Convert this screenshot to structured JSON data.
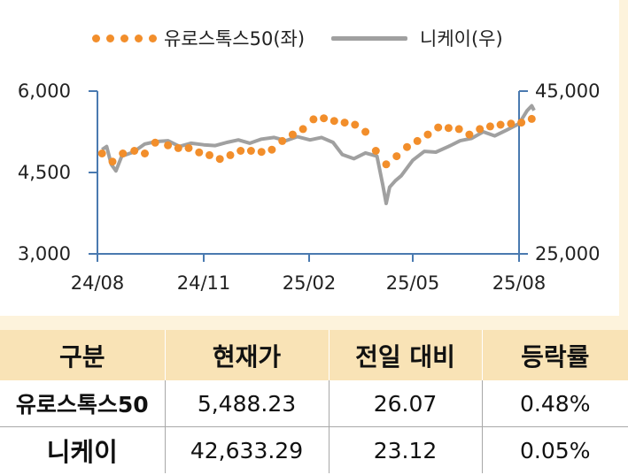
{
  "legend": {
    "series1": "유로스톡스50(좌)",
    "series2": "니케이(우)"
  },
  "axes": {
    "left_ticks": [
      "6,000",
      "4,500",
      "3,000"
    ],
    "right_ticks": [
      "45,000",
      "25,000"
    ],
    "x_ticks": [
      "24/08",
      "24/11",
      "25/02",
      "25/05",
      "25/08"
    ]
  },
  "chart_data": {
    "type": "line",
    "x_domain": [
      "2024-08",
      "2025-08"
    ],
    "xticks": [
      "24/08",
      "24/11",
      "25/02",
      "25/05",
      "25/08"
    ],
    "left_axis": {
      "ylim": [
        3000,
        6000
      ],
      "ticks": [
        6000,
        4500,
        3000
      ]
    },
    "right_axis": {
      "ylim": [
        25000,
        45000
      ],
      "ticks": [
        45000,
        25000
      ]
    },
    "series": [
      {
        "name": "유로스톡스50(좌)",
        "axis": "left",
        "style": "dotted",
        "color": "#f28e2b",
        "x": [
          "2024-08-05",
          "2024-08-14",
          "2024-08-23",
          "2024-09-02",
          "2024-09-11",
          "2024-09-20",
          "2024-10-01",
          "2024-10-10",
          "2024-10-19",
          "2024-10-28",
          "2024-11-06",
          "2024-11-15",
          "2024-11-24",
          "2024-12-03",
          "2024-12-12",
          "2024-12-21",
          "2024-12-30",
          "2025-01-08",
          "2025-01-17",
          "2025-01-26",
          "2025-02-04",
          "2025-02-13",
          "2025-02-22",
          "2025-03-03",
          "2025-03-12",
          "2025-03-21",
          "2025-03-30",
          "2025-04-08",
          "2025-04-17",
          "2025-04-26",
          "2025-05-05",
          "2025-05-14",
          "2025-05-23",
          "2025-06-01",
          "2025-06-10",
          "2025-06-19",
          "2025-06-28",
          "2025-07-07",
          "2025-07-16",
          "2025-07-25",
          "2025-08-03",
          "2025-08-12"
        ],
        "values": [
          4850,
          4700,
          4850,
          4900,
          4850,
          5050,
          5000,
          4950,
          4950,
          4870,
          4820,
          4750,
          4820,
          4900,
          4900,
          4880,
          4920,
          5080,
          5200,
          5300,
          5480,
          5500,
          5450,
          5420,
          5380,
          5250,
          4900,
          4650,
          4800,
          4970,
          5080,
          5200,
          5330,
          5320,
          5300,
          5200,
          5300,
          5350,
          5380,
          5400,
          5420,
          5488
        ]
      },
      {
        "name": "니케이(우)",
        "axis": "right",
        "style": "solid",
        "color": "#a0a0a0",
        "x": [
          "2024-08-05",
          "2024-08-09",
          "2024-08-13",
          "2024-08-17",
          "2024-08-22",
          "2024-09-01",
          "2024-09-11",
          "2024-09-21",
          "2024-10-01",
          "2024-10-11",
          "2024-10-21",
          "2024-11-01",
          "2024-11-11",
          "2024-11-21",
          "2024-12-01",
          "2024-12-11",
          "2024-12-21",
          "2025-01-01",
          "2025-01-11",
          "2025-01-21",
          "2025-02-01",
          "2025-02-11",
          "2025-02-21",
          "2025-03-01",
          "2025-03-11",
          "2025-03-21",
          "2025-03-31",
          "2025-04-05",
          "2025-04-08",
          "2025-04-11",
          "2025-04-16",
          "2025-04-21",
          "2025-05-01",
          "2025-05-11",
          "2025-05-21",
          "2025-06-01",
          "2025-06-11",
          "2025-06-21",
          "2025-07-01",
          "2025-07-11",
          "2025-07-21",
          "2025-08-01",
          "2025-08-08",
          "2025-08-12",
          "2025-08-14"
        ],
        "values": [
          37800,
          38200,
          36000,
          35200,
          37000,
          37500,
          38500,
          38800,
          38900,
          38200,
          38600,
          38400,
          38300,
          38700,
          39000,
          38600,
          39100,
          39300,
          38900,
          39400,
          39000,
          39300,
          38700,
          37200,
          36700,
          37400,
          37000,
          33500,
          31200,
          33200,
          34000,
          34600,
          36500,
          37600,
          37500,
          38200,
          38900,
          39200,
          40000,
          39500,
          40200,
          41000,
          42600,
          43200,
          42633
        ]
      }
    ]
  },
  "table": {
    "headers": [
      "구분",
      "현재가",
      "전일 대비",
      "등락률"
    ],
    "rows": [
      {
        "name": "유로스톡스50",
        "price": "5,488.23",
        "change": "26.07",
        "rate": "0.48%"
      },
      {
        "name": "니케이",
        "price": "42,633.29",
        "change": "23.12",
        "rate": "0.05%"
      }
    ]
  }
}
